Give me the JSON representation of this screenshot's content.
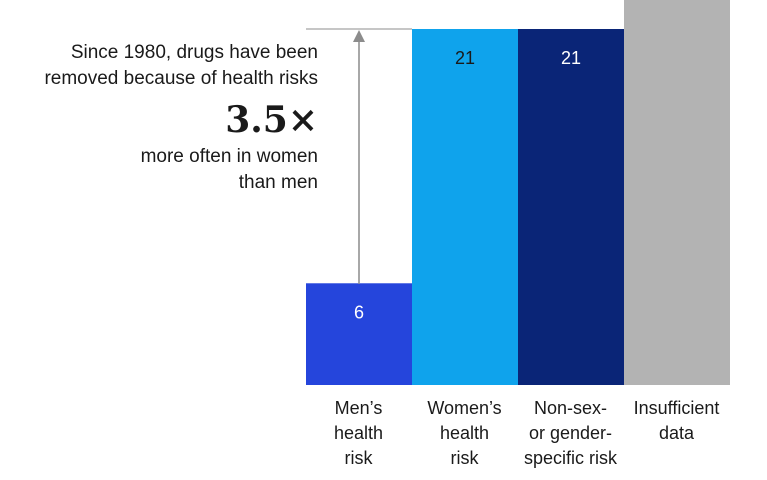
{
  "annotation": {
    "line1": "Since 1980, drugs have been",
    "line2": "removed because of health risks",
    "multiplier": "3.5×",
    "line3": "more often in women",
    "line4": "than men"
  },
  "chart_data": {
    "type": "bar",
    "title": "",
    "xlabel": "",
    "ylabel": "",
    "categories": [
      "Men’s\nhealth\nrisk",
      "Women’s\nhealth\nrisk",
      "Non-sex-\nor gender-\nspecific risk",
      "Insufficient\ndata"
    ],
    "values": [
      6,
      21,
      21,
      null
    ],
    "value_labels": [
      "6",
      "21",
      "21",
      ""
    ],
    "colors": [
      "#2545dc",
      "#0fa3ec",
      "#0a2577",
      "#b3b3b3"
    ],
    "label_colors": [
      "#ffffff",
      "#1a1a1a",
      "#ffffff",
      "#1a1a1a"
    ],
    "ylim": [
      0,
      21
    ],
    "grid": false,
    "legend": "none"
  }
}
